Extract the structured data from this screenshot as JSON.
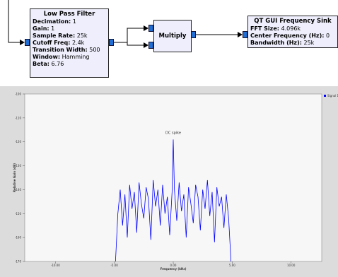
{
  "flowgraph": {
    "blocks": [
      {
        "title": "Low Pass Filter",
        "params": [
          {
            "label": "Decimation:",
            "value": "1"
          },
          {
            "label": "Gain:",
            "value": "1"
          },
          {
            "label": "Sample Rate:",
            "value": "25k"
          },
          {
            "label": "Cutoff Freq:",
            "value": "2.4k"
          },
          {
            "label": "Transition Width:",
            "value": "500"
          },
          {
            "label": "Window:",
            "value": "Hamming"
          },
          {
            "label": "Beta:",
            "value": "6.76"
          }
        ]
      },
      {
        "title": "Multiply",
        "params": []
      },
      {
        "title": "QT GUI Frequency Sink",
        "params": [
          {
            "label": "FFT Size:",
            "value": "4.096k"
          },
          {
            "label": "Center Frequency (Hz):",
            "value": "0"
          },
          {
            "label": "Bandwidth (Hz):",
            "value": "25k"
          }
        ]
      }
    ]
  },
  "chart_data": {
    "type": "line",
    "x_label": "Frequency (kHz)",
    "y_label": "Relative Gain (dB)",
    "annotation": "DC spike",
    "x": [
      -4.9,
      -4.7,
      -4.5,
      -4.3,
      -4.1,
      -3.9,
      -3.7,
      -3.5,
      -3.3,
      -3.1,
      -2.9,
      -2.7,
      -2.5,
      -2.3,
      -2.1,
      -1.9,
      -1.7,
      -1.5,
      -1.3,
      -1.1,
      -0.9,
      -0.7,
      -0.5,
      -0.3,
      -0.1,
      0,
      0.1,
      0.3,
      0.5,
      0.7,
      0.9,
      1.1,
      1.3,
      1.5,
      1.7,
      1.9,
      2.1,
      2.3,
      2.5,
      2.7,
      2.9,
      3.1,
      3.3,
      3.5,
      3.7,
      3.9,
      4.1,
      4.3,
      4.5,
      4.7,
      4.9
    ],
    "series": [
      {
        "name": "Signal 1",
        "color": "#0000ff",
        "values": [
          -170,
          -150,
          -140,
          -155,
          -142,
          -160,
          -138,
          -148,
          -141,
          -158,
          -137,
          -146,
          -152,
          -139,
          -144,
          -161,
          -136,
          -147,
          -140,
          -155,
          -138,
          -150,
          -143,
          -159,
          -141,
          -119,
          -140,
          -153,
          -137,
          -149,
          -142,
          -160,
          -139,
          -146,
          -154,
          -138,
          -143,
          -157,
          -140,
          -148,
          -136,
          -151,
          -141,
          -162,
          -139,
          -147,
          -143,
          -156,
          -142,
          -152,
          -170
        ]
      }
    ],
    "xlim": [
      -12.6,
      12.6
    ],
    "ylim": [
      -170,
      -100
    ],
    "xticks": [
      {
        "value": -10,
        "label": "-10.00"
      },
      {
        "value": -5,
        "label": "-5.00"
      },
      {
        "value": 0,
        "label": "0.00"
      },
      {
        "value": 5,
        "label": "5.00"
      },
      {
        "value": 10,
        "label": "10.00"
      }
    ],
    "yticks": [
      -100,
      -110,
      -120,
      -130,
      -140,
      -150,
      -160,
      -170
    ],
    "grid": false
  }
}
